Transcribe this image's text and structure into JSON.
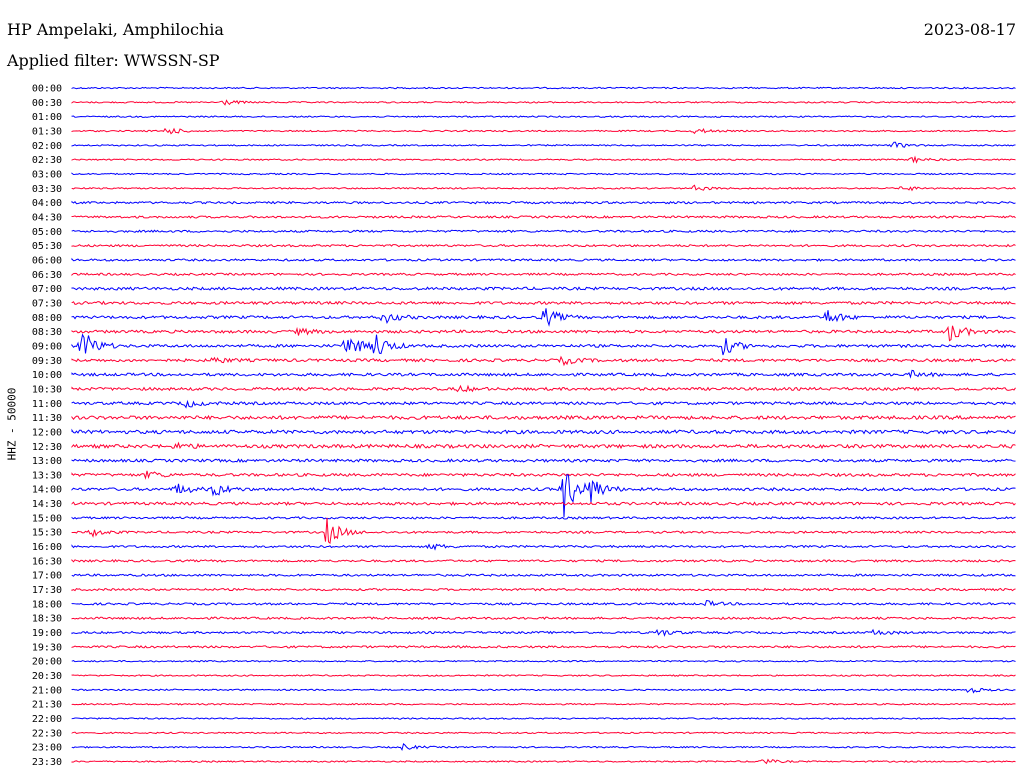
{
  "header": {
    "station": "HP Ampelaki, Amphilochia",
    "date": "2023-08-17",
    "filter": "Applied filter: WWSSN-SP"
  },
  "chart_data": {
    "type": "line",
    "ylabel": "HHZ - 50000",
    "tick_labels": [
      "00:00",
      "00:30",
      "01:00",
      "01:30",
      "02:00",
      "02:30",
      "03:00",
      "03:30",
      "04:00",
      "04:30",
      "05:00",
      "05:30",
      "06:00",
      "06:30",
      "07:00",
      "07:30",
      "08:00",
      "08:30",
      "09:00",
      "09:30",
      "10:00",
      "10:30",
      "11:00",
      "11:30",
      "12:00",
      "12:30",
      "13:00",
      "13:30",
      "14:00",
      "14:30",
      "15:00",
      "15:30",
      "16:00",
      "16:30",
      "17:00",
      "17:30",
      "18:00",
      "18:30",
      "19:00",
      "19:30",
      "20:00",
      "20:30",
      "21:00",
      "21:30",
      "22:00",
      "22:30",
      "23:00",
      "23:30"
    ],
    "line_colors": [
      "#0000ff",
      "#ff0033"
    ],
    "noise_levels": [
      1,
      1,
      1,
      1,
      1,
      1,
      1,
      1,
      1.5,
      1.5,
      1.5,
      1.5,
      1.5,
      1.5,
      2,
      2,
      2,
      2,
      2,
      2,
      2,
      2,
      2,
      2.5,
      2.5,
      2.5,
      2,
      2,
      2,
      2,
      1.5,
      1.5,
      1.5,
      1.5,
      1.5,
      1.5,
      1.5,
      1.5,
      1.5,
      1.5,
      1,
      1,
      1,
      1,
      1,
      1,
      1,
      1
    ],
    "events": [
      {
        "row": 1,
        "pos": 0.16,
        "amp": 3
      },
      {
        "row": 3,
        "pos": 0.1,
        "amp": 4
      },
      {
        "row": 3,
        "pos": 0.66,
        "amp": 3
      },
      {
        "row": 4,
        "pos": 0.87,
        "amp": 3
      },
      {
        "row": 5,
        "pos": 0.89,
        "amp": 3
      },
      {
        "row": 7,
        "pos": 0.66,
        "amp": 3
      },
      {
        "row": 7,
        "pos": 0.88,
        "amp": 3
      },
      {
        "row": 16,
        "pos": 0.33,
        "amp": 6
      },
      {
        "row": 16,
        "pos": 0.5,
        "amp": 10
      },
      {
        "row": 16,
        "pos": 0.8,
        "amp": 8
      },
      {
        "row": 17,
        "pos": 0.24,
        "amp": 3
      },
      {
        "row": 17,
        "pos": 0.93,
        "amp": 10
      },
      {
        "row": 18,
        "pos": 0.01,
        "amp": 18
      },
      {
        "row": 18,
        "pos": 0.29,
        "amp": 14
      },
      {
        "row": 18,
        "pos": 0.32,
        "amp": 14
      },
      {
        "row": 18,
        "pos": 0.69,
        "amp": 9
      },
      {
        "row": 19,
        "pos": 0.15,
        "amp": 3
      },
      {
        "row": 19,
        "pos": 0.52,
        "amp": 4
      },
      {
        "row": 20,
        "pos": 0.89,
        "amp": 3
      },
      {
        "row": 21,
        "pos": 0.41,
        "amp": 3
      },
      {
        "row": 22,
        "pos": 0.12,
        "amp": 4
      },
      {
        "row": 25,
        "pos": 0.11,
        "amp": 3
      },
      {
        "row": 27,
        "pos": 0.08,
        "amp": 4
      },
      {
        "row": 28,
        "pos": 0.11,
        "amp": 6
      },
      {
        "row": 28,
        "pos": 0.15,
        "amp": 7
      },
      {
        "row": 28,
        "pos": 0.52,
        "amp": 30
      },
      {
        "row": 28,
        "pos": 0.55,
        "amp": 12
      },
      {
        "row": 31,
        "pos": 0.02,
        "amp": 4
      },
      {
        "row": 31,
        "pos": 0.27,
        "amp": 14
      },
      {
        "row": 32,
        "pos": 0.38,
        "amp": 3
      },
      {
        "row": 36,
        "pos": 0.67,
        "amp": 3
      },
      {
        "row": 38,
        "pos": 0.62,
        "amp": 4
      },
      {
        "row": 38,
        "pos": 0.85,
        "amp": 3
      },
      {
        "row": 42,
        "pos": 0.95,
        "amp": 3
      },
      {
        "row": 46,
        "pos": 0.35,
        "amp": 3
      },
      {
        "row": 47,
        "pos": 0.73,
        "amp": 3
      }
    ]
  }
}
